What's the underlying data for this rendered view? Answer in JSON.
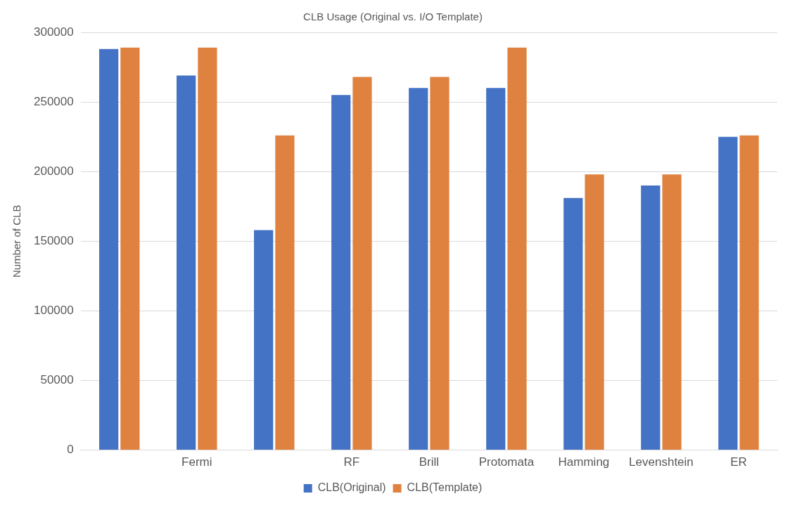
{
  "chart_data": {
    "type": "bar",
    "title": "CLB Usage (Original vs. I/O Template)",
    "ylabel": "Number of CLB",
    "categories": [
      null,
      "Fermi",
      null,
      "RF",
      "Brill",
      "Protomata",
      "Hamming",
      "Levenshtein",
      "ER"
    ],
    "series": [
      {
        "name": "CLB(Original)",
        "color": "#4472c4",
        "values": [
          288000,
          269000,
          158000,
          255000,
          260000,
          260000,
          181000,
          190000,
          225000
        ]
      },
      {
        "name": "CLB(Template)",
        "color": "#e0823f",
        "values": [
          289000,
          289000,
          226000,
          268000,
          268000,
          289000,
          198000,
          198000,
          226000
        ]
      }
    ],
    "ylim": [
      0,
      300000
    ],
    "yticks": [
      0,
      50000,
      100000,
      150000,
      200000,
      250000,
      300000
    ],
    "grid": "y",
    "legend": "bottom"
  }
}
